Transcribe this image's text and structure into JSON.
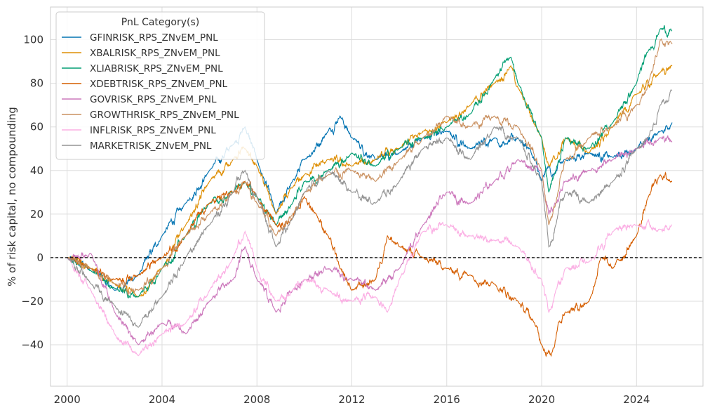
{
  "chart_data": {
    "type": "line",
    "title": "",
    "xlabel": "",
    "ylabel": "% of risk capital, no compounding",
    "xlim": [
      1999.3,
      2026.8
    ],
    "ylim": [
      -59,
      115
    ],
    "xticks": [
      2000,
      2004,
      2008,
      2012,
      2016,
      2020,
      2024
    ],
    "yticks": [
      -40,
      -20,
      0,
      20,
      40,
      60,
      80,
      100
    ],
    "grid": true,
    "zero_line": {
      "y": 0,
      "style": "dashed",
      "color": "#000000"
    },
    "legend": {
      "title": "PnL Category(s)",
      "placement": "top-left"
    },
    "series": [
      {
        "name": "GFINRISK_RPS_ZNvEM_PNL",
        "color": "#0173b2",
        "x": [
          2000.0,
          2001.0,
          2002.0,
          2003.0,
          2004.0,
          2005.0,
          2006.0,
          2007.0,
          2007.5,
          2008.0,
          2008.8,
          2009.5,
          2010.0,
          2011.0,
          2011.5,
          2012.0,
          2013.0,
          2014.0,
          2015.0,
          2016.0,
          2017.0,
          2018.0,
          2018.5,
          2019.0,
          2019.5,
          2020.0,
          2020.3,
          2020.5,
          2021.0,
          2022.0,
          2023.0,
          2024.0,
          2025.0,
          2025.5
        ],
        "y": [
          0,
          -5,
          -15,
          -8,
          10,
          25,
          40,
          52,
          60,
          45,
          20,
          35,
          45,
          58,
          65,
          55,
          45,
          48,
          55,
          58,
          50,
          55,
          52,
          55,
          50,
          35,
          42,
          38,
          45,
          48,
          46,
          50,
          58,
          62
        ]
      },
      {
        "name": "XBALRISK_RPS_ZNvEM_PNL",
        "color": "#de8f05",
        "x": [
          2000.0,
          2001.0,
          2002.0,
          2003.0,
          2004.0,
          2005.0,
          2006.0,
          2007.0,
          2007.5,
          2008.0,
          2008.8,
          2009.5,
          2010.0,
          2011.0,
          2012.0,
          2013.0,
          2014.0,
          2015.0,
          2016.0,
          2017.0,
          2018.0,
          2018.7,
          2019.0,
          2020.0,
          2020.3,
          2020.6,
          2021.0,
          2022.0,
          2023.0,
          2024.0,
          2025.0,
          2025.5
        ],
        "y": [
          0,
          -5,
          -12,
          -18,
          -5,
          15,
          35,
          45,
          50,
          42,
          20,
          32,
          38,
          45,
          42,
          45,
          50,
          58,
          62,
          70,
          80,
          88,
          78,
          55,
          42,
          45,
          55,
          48,
          60,
          75,
          85,
          88
        ]
      },
      {
        "name": "XLIABRISK_RPS_ZNvEM_PNL",
        "color": "#029e73",
        "x": [
          2000.0,
          2001.0,
          2002.0,
          2003.0,
          2004.0,
          2005.0,
          2006.0,
          2007.0,
          2007.5,
          2008.0,
          2008.8,
          2009.5,
          2010.0,
          2011.0,
          2012.0,
          2013.0,
          2014.0,
          2015.0,
          2016.0,
          2017.0,
          2018.0,
          2018.7,
          2019.0,
          2020.0,
          2020.3,
          2020.6,
          2021.0,
          2022.0,
          2023.0,
          2024.0,
          2024.5,
          2025.0,
          2025.5
        ],
        "y": [
          0,
          -6,
          -14,
          -18,
          -5,
          10,
          25,
          30,
          35,
          28,
          15,
          25,
          35,
          40,
          48,
          42,
          50,
          55,
          60,
          66,
          82,
          92,
          80,
          55,
          30,
          40,
          55,
          50,
          62,
          80,
          95,
          105,
          104
        ]
      },
      {
        "name": "XDEBTRISK_RPS_ZNvEM_PNL",
        "color": "#d55e00",
        "x": [
          2000.0,
          2001.0,
          2002.0,
          2003.0,
          2004.0,
          2005.0,
          2006.0,
          2007.0,
          2007.5,
          2008.0,
          2008.8,
          2009.5,
          2010.0,
          2010.5,
          2011.0,
          2011.5,
          2012.0,
          2013.0,
          2013.5,
          2014.0,
          2015.0,
          2016.0,
          2017.0,
          2018.0,
          2019.0,
          2019.7,
          2020.0,
          2020.4,
          2020.7,
          2021.0,
          2022.0,
          2022.5,
          2023.0,
          2024.0,
          2024.5,
          2025.0,
          2025.5
        ],
        "y": [
          0,
          -5,
          -10,
          -8,
          0,
          10,
          25,
          30,
          35,
          28,
          15,
          18,
          28,
          20,
          10,
          -5,
          -15,
          -10,
          10,
          5,
          0,
          -5,
          -8,
          -12,
          -20,
          -30,
          -40,
          -45,
          -30,
          -25,
          -20,
          0,
          -5,
          10,
          28,
          38,
          35
        ]
      },
      {
        "name": "GOVRISK_RPS_ZNvEM_PNL",
        "color": "#cc78bc",
        "x": [
          2000.0,
          2001.0,
          2002.0,
          2003.0,
          2004.0,
          2005.0,
          2006.0,
          2007.0,
          2007.5,
          2008.0,
          2008.8,
          2009.5,
          2010.0,
          2011.0,
          2012.0,
          2013.0,
          2014.0,
          2015.0,
          2016.0,
          2017.0,
          2018.0,
          2019.0,
          2020.0,
          2020.3,
          2020.6,
          2021.0,
          2022.0,
          2023.0,
          2024.0,
          2025.0,
          2025.5
        ],
        "y": [
          0,
          2,
          -25,
          -40,
          -30,
          -35,
          -20,
          -10,
          5,
          -10,
          -25,
          -15,
          -10,
          -5,
          -10,
          -15,
          -5,
          15,
          30,
          25,
          35,
          45,
          40,
          20,
          25,
          35,
          40,
          45,
          50,
          55,
          53
        ]
      },
      {
        "name": "GROWTHRISK_RPS_ZNvEM_PNL",
        "color": "#ca9161",
        "x": [
          2000.0,
          2001.0,
          2002.0,
          2003.0,
          2004.0,
          2005.0,
          2006.0,
          2007.0,
          2007.5,
          2008.0,
          2008.8,
          2009.5,
          2010.0,
          2011.0,
          2012.0,
          2013.0,
          2014.0,
          2015.0,
          2016.0,
          2017.0,
          2018.0,
          2019.0,
          2020.0,
          2020.3,
          2020.6,
          2021.0,
          2022.0,
          2023.0,
          2024.0,
          2024.5,
          2025.0,
          2025.5
        ],
        "y": [
          0,
          -5,
          -12,
          -15,
          -5,
          10,
          20,
          30,
          35,
          25,
          10,
          20,
          30,
          38,
          40,
          35,
          45,
          55,
          65,
          60,
          65,
          60,
          40,
          15,
          25,
          45,
          55,
          60,
          70,
          80,
          100,
          98
        ]
      },
      {
        "name": "INFLRISK_RPS_ZNvEM_PNL",
        "color": "#fbafe4",
        "x": [
          2000.0,
          2001.0,
          2002.0,
          2003.0,
          2004.0,
          2005.0,
          2006.0,
          2007.0,
          2007.5,
          2008.0,
          2008.8,
          2009.5,
          2010.0,
          2011.0,
          2012.0,
          2013.0,
          2013.5,
          2014.0,
          2015.0,
          2016.0,
          2017.0,
          2018.0,
          2019.0,
          2020.0,
          2020.3,
          2020.6,
          2021.0,
          2022.0,
          2023.0,
          2024.0,
          2025.0,
          2025.5
        ],
        "y": [
          0,
          -15,
          -35,
          -45,
          -35,
          -30,
          -15,
          0,
          12,
          -5,
          -20,
          -15,
          -10,
          -15,
          -20,
          -18,
          -25,
          -10,
          12,
          15,
          10,
          8,
          5,
          -10,
          -25,
          -15,
          -5,
          -2,
          12,
          15,
          13,
          15
        ]
      },
      {
        "name": "MARKETRISK_ZNvEM_PNL",
        "color": "#949494",
        "x": [
          2000.0,
          2001.0,
          2002.0,
          2003.0,
          2004.0,
          2005.0,
          2006.0,
          2007.0,
          2007.5,
          2008.0,
          2008.8,
          2009.5,
          2010.0,
          2011.0,
          2012.0,
          2013.0,
          2014.0,
          2015.0,
          2016.0,
          2017.0,
          2018.0,
          2019.0,
          2020.0,
          2020.3,
          2020.6,
          2021.0,
          2022.0,
          2023.0,
          2024.0,
          2024.5,
          2025.0,
          2025.5
        ],
        "y": [
          0,
          -12,
          -22,
          -32,
          -18,
          0,
          15,
          30,
          40,
          28,
          5,
          18,
          30,
          40,
          30,
          25,
          35,
          50,
          55,
          45,
          60,
          55,
          35,
          5,
          15,
          30,
          25,
          35,
          50,
          55,
          70,
          77
        ]
      }
    ]
  }
}
